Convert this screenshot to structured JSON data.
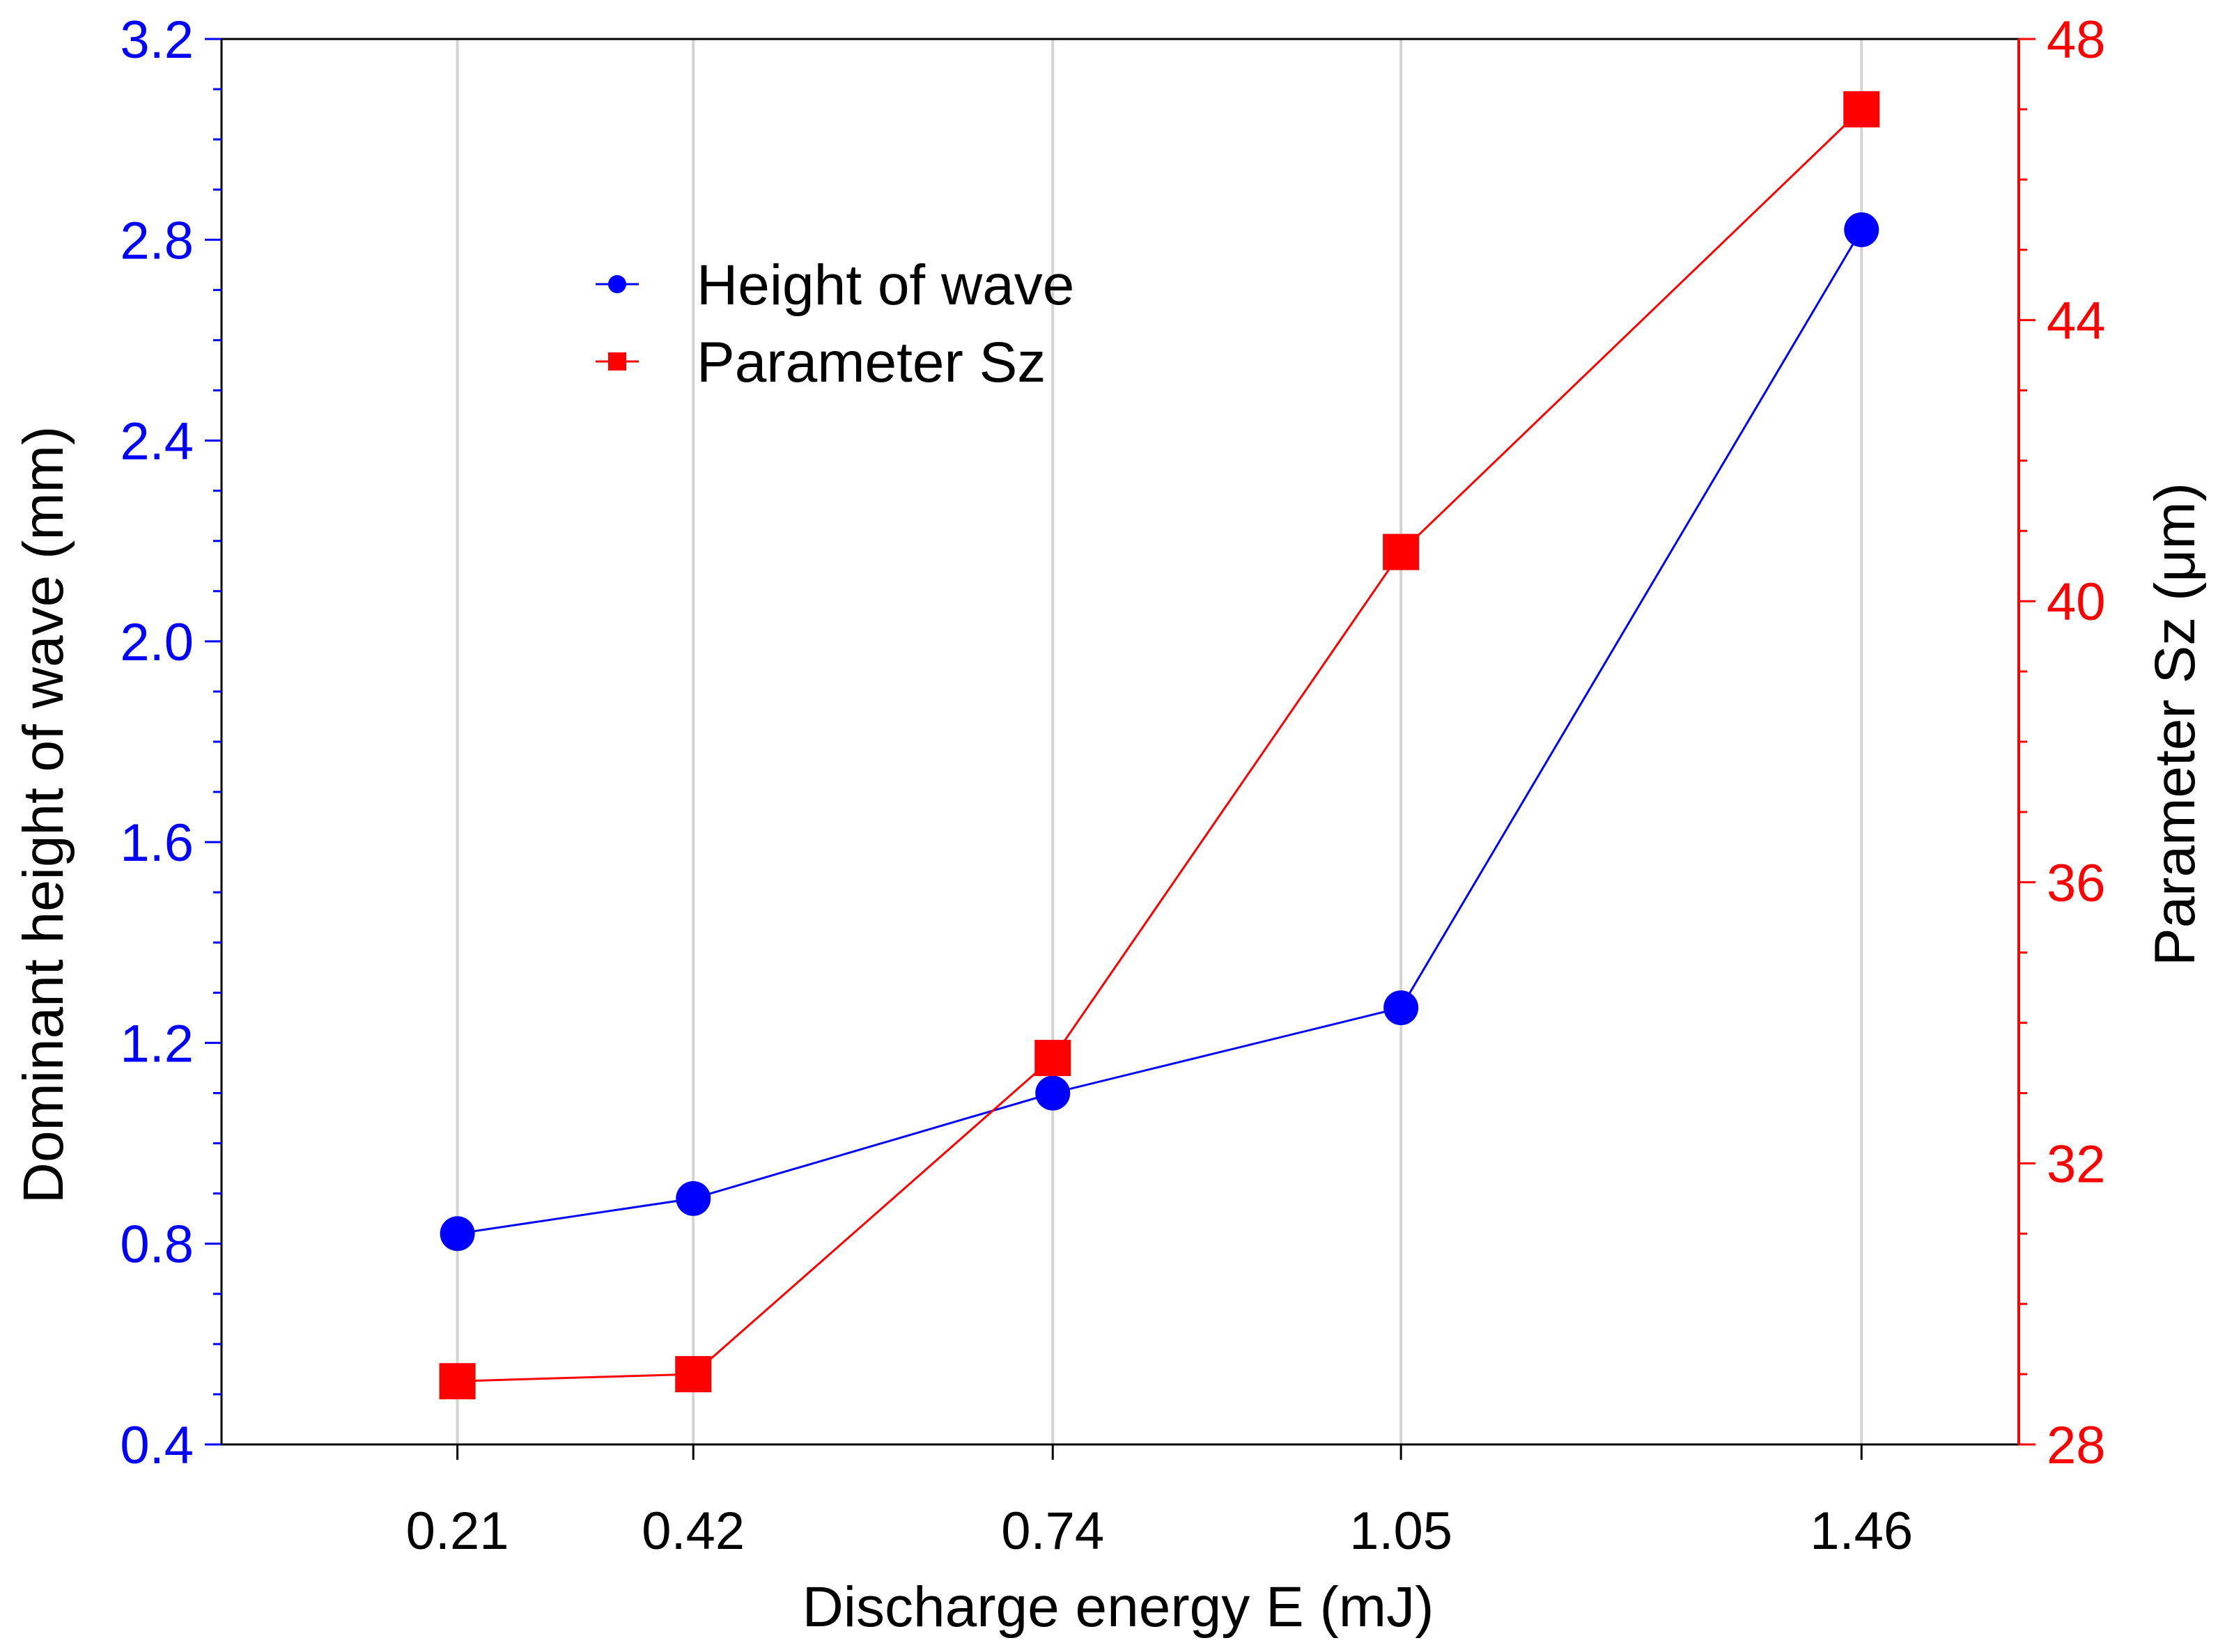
{
  "chart_data": {
    "type": "line",
    "title": "",
    "xlabel": "Discharge energy E (mJ)",
    "categories": [
      "0.21",
      "0.42",
      "0.74",
      "1.05",
      "1.46"
    ],
    "x": [
      0.21,
      0.42,
      0.74,
      1.05,
      1.46
    ],
    "xlim": [
      0.0,
      1.6
    ],
    "grid": "vertical at data points",
    "legend_position": "upper-left",
    "left_axis": {
      "label": "Dominant height of wave (mm)",
      "ylim": [
        0.4,
        3.2
      ],
      "ticks": [
        "0.4",
        "0.8",
        "1.2",
        "1.6",
        "2.0",
        "2.4",
        "2.8",
        "3.2"
      ],
      "color": "#0000FF"
    },
    "right_axis": {
      "label": "Parameter Sz (μm)",
      "ylim": [
        28,
        48
      ],
      "ticks": [
        "28",
        "32",
        "36",
        "40",
        "44",
        "48"
      ],
      "color": "#FF0000"
    },
    "series": [
      {
        "name": "Height of wave",
        "axis": "left",
        "marker": "circle",
        "color": "#0000FF",
        "values": [
          0.82,
          0.89,
          1.1,
          1.27,
          2.82
        ]
      },
      {
        "name": "Parameter Sz",
        "axis": "right",
        "marker": "square",
        "color": "#FF0000",
        "values": [
          28.9,
          29.0,
          33.5,
          40.7,
          47.0
        ]
      }
    ]
  }
}
